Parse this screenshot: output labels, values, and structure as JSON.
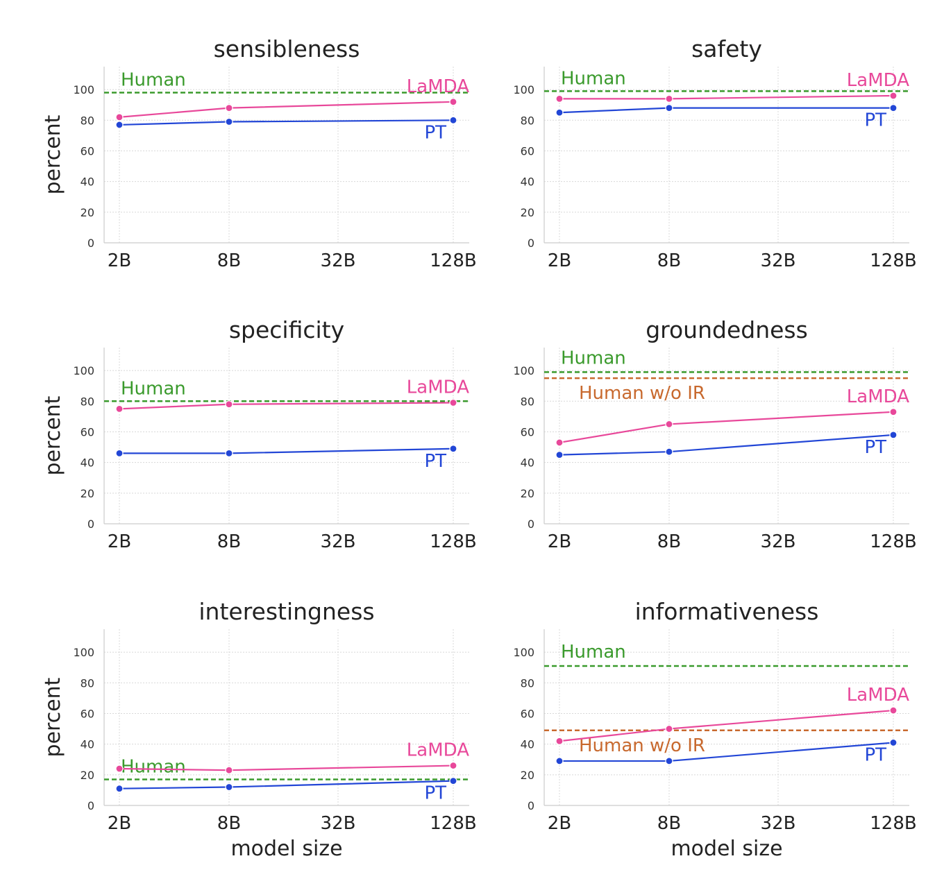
{
  "colors": {
    "human": "#3a9a2c",
    "human_wo_ir": "#c8692e",
    "lamda": "#e8489a",
    "pt": "#2246d6",
    "axis_text": "#333333",
    "title_text": "#222222",
    "grid": "#d8d8d8",
    "spine": "#cccccc"
  },
  "chart_data": [
    {
      "type": "line",
      "title": "sensibleness",
      "ylabel": "percent",
      "xlabel": "",
      "x_scale": "log",
      "categories": [
        "2B",
        "8B",
        "32B",
        "128B"
      ],
      "yticks": [
        "0",
        "20",
        "40",
        "60",
        "80",
        "100"
      ],
      "ylim": [
        0,
        115
      ],
      "grid": true,
      "series": [
        {
          "name": "LaMDA",
          "x": [
            "2B",
            "8B",
            "128B"
          ],
          "values": [
            82,
            88,
            92
          ]
        },
        {
          "name": "PT",
          "x": [
            "2B",
            "8B",
            "128B"
          ],
          "values": [
            77,
            79,
            80
          ]
        }
      ],
      "references": [
        {
          "name": "Human",
          "value": 98
        }
      ]
    },
    {
      "type": "line",
      "title": "safety",
      "ylabel": "",
      "xlabel": "",
      "x_scale": "log",
      "categories": [
        "2B",
        "8B",
        "32B",
        "128B"
      ],
      "yticks": [
        "0",
        "20",
        "40",
        "60",
        "80",
        "100"
      ],
      "ylim": [
        0,
        115
      ],
      "grid": true,
      "series": [
        {
          "name": "LaMDA",
          "x": [
            "2B",
            "8B",
            "128B"
          ],
          "values": [
            94,
            94,
            96
          ]
        },
        {
          "name": "PT",
          "x": [
            "2B",
            "8B",
            "128B"
          ],
          "values": [
            85,
            88,
            88
          ]
        }
      ],
      "references": [
        {
          "name": "Human",
          "value": 99
        }
      ]
    },
    {
      "type": "line",
      "title": "specificity",
      "ylabel": "percent",
      "xlabel": "",
      "x_scale": "log",
      "categories": [
        "2B",
        "8B",
        "32B",
        "128B"
      ],
      "yticks": [
        "0",
        "20",
        "40",
        "60",
        "80",
        "100"
      ],
      "ylim": [
        0,
        115
      ],
      "grid": true,
      "series": [
        {
          "name": "LaMDA",
          "x": [
            "2B",
            "8B",
            "128B"
          ],
          "values": [
            75,
            78,
            79
          ]
        },
        {
          "name": "PT",
          "x": [
            "2B",
            "8B",
            "128B"
          ],
          "values": [
            46,
            46,
            49
          ]
        }
      ],
      "references": [
        {
          "name": "Human",
          "value": 80
        }
      ]
    },
    {
      "type": "line",
      "title": "groundedness",
      "ylabel": "",
      "xlabel": "",
      "x_scale": "log",
      "categories": [
        "2B",
        "8B",
        "32B",
        "128B"
      ],
      "yticks": [
        "0",
        "20",
        "40",
        "60",
        "80",
        "100"
      ],
      "ylim": [
        0,
        115
      ],
      "grid": true,
      "series": [
        {
          "name": "LaMDA",
          "x": [
            "2B",
            "8B",
            "128B"
          ],
          "values": [
            53,
            65,
            73
          ]
        },
        {
          "name": "PT",
          "x": [
            "2B",
            "8B",
            "128B"
          ],
          "values": [
            45,
            47,
            58
          ]
        }
      ],
      "references": [
        {
          "name": "Human",
          "value": 99
        },
        {
          "name": "Human w/o IR",
          "value": 95
        }
      ]
    },
    {
      "type": "line",
      "title": "interestingness",
      "ylabel": "percent",
      "xlabel": "model size",
      "x_scale": "log",
      "categories": [
        "2B",
        "8B",
        "32B",
        "128B"
      ],
      "yticks": [
        "0",
        "20",
        "40",
        "60",
        "80",
        "100"
      ],
      "ylim": [
        0,
        115
      ],
      "grid": true,
      "series": [
        {
          "name": "LaMDA",
          "x": [
            "2B",
            "8B",
            "128B"
          ],
          "values": [
            24,
            23,
            26
          ]
        },
        {
          "name": "PT",
          "x": [
            "2B",
            "8B",
            "128B"
          ],
          "values": [
            11,
            12,
            16
          ]
        }
      ],
      "references": [
        {
          "name": "Human",
          "value": 17
        }
      ]
    },
    {
      "type": "line",
      "title": "informativeness",
      "ylabel": "",
      "xlabel": "model size",
      "x_scale": "log",
      "categories": [
        "2B",
        "8B",
        "32B",
        "128B"
      ],
      "yticks": [
        "0",
        "20",
        "40",
        "60",
        "80",
        "100"
      ],
      "ylim": [
        0,
        115
      ],
      "grid": true,
      "series": [
        {
          "name": "LaMDA",
          "x": [
            "2B",
            "8B",
            "128B"
          ],
          "values": [
            42,
            50,
            62
          ]
        },
        {
          "name": "PT",
          "x": [
            "2B",
            "8B",
            "128B"
          ],
          "values": [
            29,
            29,
            41
          ]
        }
      ],
      "references": [
        {
          "name": "Human",
          "value": 91
        },
        {
          "name": "Human w/o IR",
          "value": 49
        }
      ]
    }
  ]
}
